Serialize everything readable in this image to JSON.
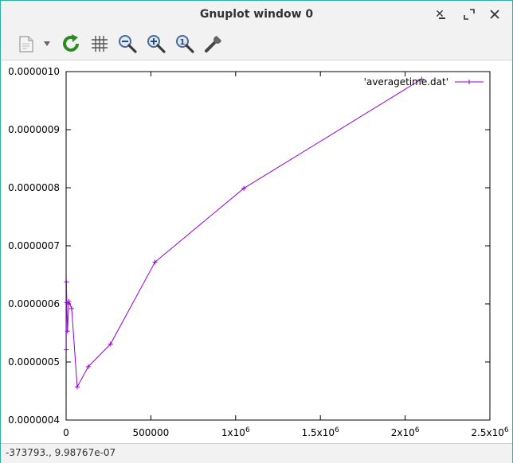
{
  "window": {
    "title": "Gnuplot window 0",
    "controls": [
      "minimize",
      "restore",
      "close"
    ]
  },
  "toolbar": {
    "items": [
      {
        "name": "copy-to-clipboard",
        "icon": "clipboard-icon"
      },
      {
        "name": "menu-dropdown",
        "icon": "dropdown-arrow-icon"
      },
      {
        "name": "replot",
        "icon": "refresh-icon"
      },
      {
        "name": "toggle-grid",
        "icon": "grid-icon"
      },
      {
        "name": "zoom-out",
        "icon": "zoom-out-icon"
      },
      {
        "name": "zoom-in",
        "icon": "zoom-in-icon"
      },
      {
        "name": "zoom-fit",
        "icon": "zoom-fit-icon"
      },
      {
        "name": "settings",
        "icon": "wrench-icon"
      }
    ]
  },
  "status": {
    "coords": "-373793., 9.98767e-07"
  },
  "colors": {
    "series": "#9400d3",
    "accent_border": "#2bb39b"
  },
  "chart_data": {
    "type": "line",
    "title": "",
    "xlabel": "",
    "ylabel": "",
    "xlim": [
      0,
      2500000
    ],
    "ylim": [
      4e-07,
      1e-06
    ],
    "x_ticks": [
      {
        "value": 0,
        "label": "0"
      },
      {
        "value": 500000,
        "label": "500000"
      },
      {
        "value": 1000000,
        "label": "1x10",
        "sup": "6"
      },
      {
        "value": 1500000,
        "label": "1.5x10",
        "sup": "6"
      },
      {
        "value": 2000000,
        "label": "2x10",
        "sup": "6"
      },
      {
        "value": 2500000,
        "label": "2.5x10",
        "sup": "6"
      }
    ],
    "y_ticks": [
      {
        "value": 4e-07,
        "label": "0.0000004"
      },
      {
        "value": 5e-07,
        "label": "0.0000005"
      },
      {
        "value": 6e-07,
        "label": "0.0000006"
      },
      {
        "value": 7e-07,
        "label": "0.0000007"
      },
      {
        "value": 8e-07,
        "label": "0.0000008"
      },
      {
        "value": 9e-07,
        "label": "0.0000009"
      },
      {
        "value": 1e-06,
        "label": "0.0000010"
      }
    ],
    "legend": {
      "position": "top-right"
    },
    "grid": false,
    "series": [
      {
        "name": "'averagetime.dat'",
        "points": [
          [
            1024,
            5.21e-07
          ],
          [
            2048,
            6.38e-07
          ],
          [
            4096,
            6.02e-07
          ],
          [
            8192,
            5.53e-07
          ],
          [
            16384,
            6.04e-07
          ],
          [
            32768,
            5.92e-07
          ],
          [
            65536,
            4.57e-07
          ],
          [
            131072,
            4.92e-07
          ],
          [
            262144,
            5.31e-07
          ],
          [
            524288,
            6.72e-07
          ],
          [
            1048576,
            7.99e-07
          ],
          [
            2097152,
            9.87e-07
          ]
        ]
      }
    ]
  }
}
